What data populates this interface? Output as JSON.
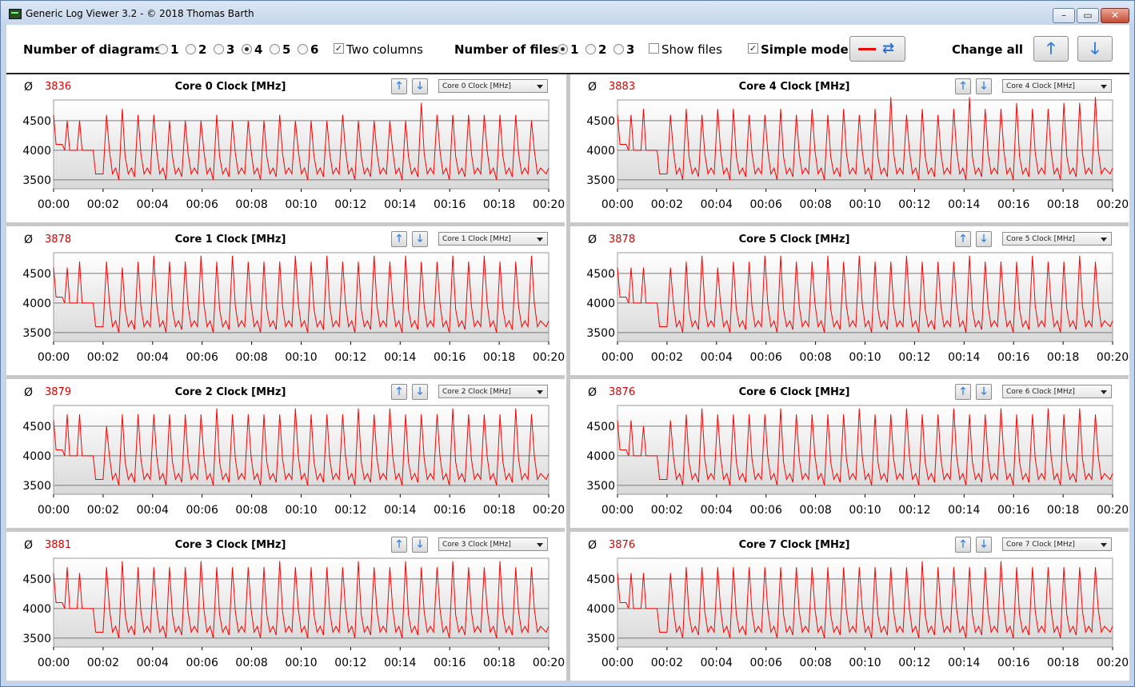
{
  "window": {
    "title": "Generic Log Viewer 3.2 - © 2018 Thomas Barth"
  },
  "toolbar": {
    "num_diagrams_label": "Number of diagrams",
    "diagram_options": [
      "1",
      "2",
      "3",
      "4",
      "5",
      "6"
    ],
    "diagram_selected": "4",
    "two_columns_label": "Two columns",
    "two_columns_checked": true,
    "num_files_label": "Number of files",
    "file_options": [
      "1",
      "2",
      "3"
    ],
    "file_selected": "1",
    "show_files_label": "Show files",
    "show_files_checked": false,
    "simple_mode_label": "Simple mode",
    "simple_mode_checked": true,
    "change_all_label": "Change all"
  },
  "avg_symbol": "Ø",
  "colors": {
    "series": "#ff0000",
    "avg": "#d40000"
  },
  "panels": [
    {
      "title": "Core 0 Clock [MHz]",
      "avg": "3836",
      "select": "Core 0 Clock [MHz]"
    },
    {
      "title": "Core 4 Clock [MHz]",
      "avg": "3883",
      "select": "Core 4 Clock [MHz]"
    },
    {
      "title": "Core 1 Clock [MHz]",
      "avg": "3878",
      "select": "Core 1 Clock [MHz]"
    },
    {
      "title": "Core 5 Clock [MHz]",
      "avg": "3878",
      "select": "Core 5 Clock [MHz]"
    },
    {
      "title": "Core 2 Clock [MHz]",
      "avg": "3879",
      "select": "Core 2 Clock [MHz]"
    },
    {
      "title": "Core 6 Clock [MHz]",
      "avg": "3876",
      "select": "Core 6 Clock [MHz]"
    },
    {
      "title": "Core 3 Clock [MHz]",
      "avg": "3881",
      "select": "Core 3 Clock [MHz]"
    },
    {
      "title": "Core 7 Clock [MHz]",
      "avg": "3876",
      "select": "Core 7 Clock [MHz]"
    }
  ],
  "chart_data": {
    "type": "line",
    "x_ticks": [
      "00:00",
      "00:02",
      "00:04",
      "00:06",
      "00:08",
      "00:10",
      "00:12",
      "00:14",
      "00:16",
      "00:18",
      "00:20"
    ],
    "y_ticks": [
      3500,
      4000,
      4500
    ],
    "ylim": [
      3350,
      4850
    ],
    "xlim": [
      0,
      20
    ],
    "series_peaks": [
      [
        4500,
        4500,
        4600,
        4700,
        4600,
        4600,
        4500,
        4500,
        4500,
        4600,
        4500,
        4500,
        4500,
        4600,
        4500,
        4500,
        4500,
        4600,
        4500,
        4500,
        4500,
        4500,
        4800,
        4600,
        4600,
        4600,
        4600,
        4600,
        4600,
        4500
      ],
      [
        4600,
        4700,
        4600,
        4700,
        4600,
        4700,
        4700,
        4600,
        4600,
        4700,
        4600,
        4700,
        4600,
        4700,
        4600,
        4700,
        4900,
        4600,
        4700,
        4600,
        4700,
        4900,
        4700,
        4700,
        4800,
        4700,
        4700,
        4800,
        4800,
        4900
      ],
      [
        4600,
        4700,
        4700,
        4600,
        4700,
        4800,
        4700,
        4700,
        4800,
        4700,
        4800,
        4700,
        4700,
        4700,
        4800,
        4700,
        4800,
        4700,
        4700,
        4800,
        4700,
        4800,
        4700,
        4700,
        4800,
        4700,
        4800,
        4700,
        4700,
        4800
      ],
      [
        4600,
        4600,
        4600,
        4700,
        4800,
        4600,
        4700,
        4700,
        4800,
        4800,
        4700,
        4700,
        4800,
        4700,
        4800,
        4700,
        4700,
        4800,
        4700,
        4700,
        4700,
        4800,
        4700,
        4700,
        4700,
        4800,
        4700,
        4700,
        4800,
        4700
      ],
      [
        4700,
        4700,
        4500,
        4700,
        4700,
        4700,
        4700,
        4700,
        4700,
        4800,
        4700,
        4700,
        4700,
        4700,
        4800,
        4700,
        4700,
        4700,
        4800,
        4700,
        4800,
        4700,
        4700,
        4700,
        4800,
        4700,
        4700,
        4700,
        4800,
        4700
      ],
      [
        4600,
        4500,
        4600,
        4700,
        4800,
        4700,
        4700,
        4700,
        4700,
        4800,
        4700,
        4700,
        4700,
        4700,
        4800,
        4700,
        4700,
        4800,
        4700,
        4700,
        4800,
        4700,
        4700,
        4800,
        4700,
        4700,
        4800,
        4700,
        4800,
        4700
      ],
      [
        4700,
        4600,
        4700,
        4800,
        4700,
        4700,
        4700,
        4700,
        4800,
        4700,
        4700,
        4700,
        4700,
        4800,
        4700,
        4700,
        4700,
        4700,
        4800,
        4700,
        4700,
        4800,
        4700,
        4700,
        4800,
        4700,
        4700,
        4800,
        4700,
        4700
      ],
      [
        4600,
        4600,
        4600,
        4700,
        4700,
        4700,
        4700,
        4700,
        4700,
        4700,
        4700,
        4700,
        4700,
        4700,
        4700,
        4700,
        4700,
        4700,
        4800,
        4700,
        4700,
        4700,
        4700,
        4800,
        4700,
        4700,
        4700,
        4700,
        4700,
        4700
      ]
    ]
  }
}
